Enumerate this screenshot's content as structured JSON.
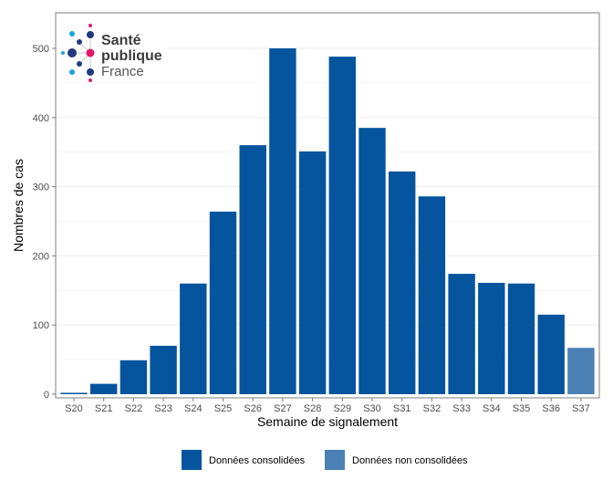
{
  "chart_data": {
    "type": "bar",
    "title": "",
    "xlabel": "Semaine de signalement",
    "ylabel": "Nombres de cas",
    "ylim": [
      0,
      551
    ],
    "yticks": [
      0,
      100,
      200,
      300,
      400,
      500
    ],
    "grid": true,
    "legend_position": "bottom",
    "categories": [
      "S20",
      "S21",
      "S22",
      "S23",
      "S24",
      "S25",
      "S26",
      "S27",
      "S28",
      "S29",
      "S30",
      "S31",
      "S32",
      "S33",
      "S34",
      "S35",
      "S36",
      "S37"
    ],
    "values": [
      2,
      15,
      49,
      70,
      160,
      264,
      360,
      500,
      351,
      488,
      385,
      322,
      286,
      174,
      161,
      160,
      115,
      67
    ],
    "status": [
      "c",
      "c",
      "c",
      "c",
      "c",
      "c",
      "c",
      "c",
      "c",
      "c",
      "c",
      "c",
      "c",
      "c",
      "c",
      "c",
      "c",
      "nc"
    ],
    "series": [
      {
        "key": "c",
        "name": "Données consolidées",
        "color": "#05549e"
      },
      {
        "key": "nc",
        "name": "Données non consolidées",
        "color": "#4a80b4"
      }
    ]
  },
  "logo": {
    "line1": "Santé",
    "line2": "publique",
    "line3": "France"
  }
}
